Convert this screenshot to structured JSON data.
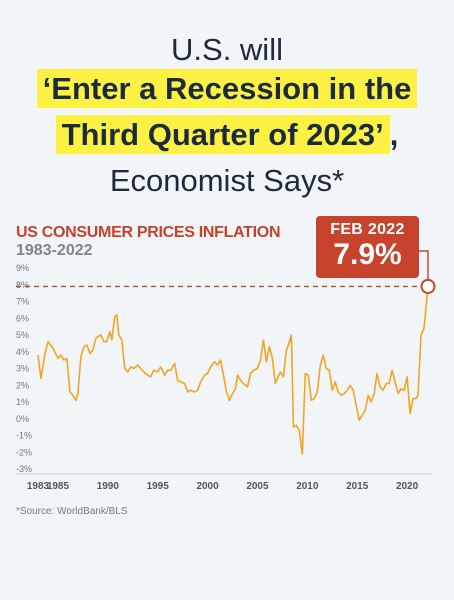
{
  "headline": {
    "line1": "U.S. will",
    "line2": "‘Enter a Recession in the",
    "line3": "Third Quarter of 2023’",
    "line3_suffix": ",",
    "line4": "Economist Says*"
  },
  "callout": {
    "date": "FEB 2022",
    "value": "7.9%"
  },
  "source": "*Source: WorldBank/BLS",
  "colors": {
    "line": "#f5a420",
    "accent": "#c7432b",
    "highlight": "#fdf244",
    "headline": "#1c2a3d"
  },
  "chart_data": {
    "type": "line",
    "title": "US CONSUMER PRICES INFLATION",
    "subtitle": "1983-2022",
    "xlabel": "",
    "ylabel": "",
    "xlim": [
      1983,
      2022.5
    ],
    "ylim": [
      -3,
      9
    ],
    "yticks": [
      "9%",
      "8%",
      "7%",
      "6%",
      "5%",
      "4%",
      "3%",
      "2%",
      "1%",
      "0%",
      "-1%",
      "-2%",
      "-3%"
    ],
    "xticks": [
      "1983",
      "1985",
      "1990",
      "1995",
      "2000",
      "2005",
      "2010",
      "2015",
      "2020"
    ],
    "reference_line": {
      "y": 7.9,
      "style": "dashed"
    },
    "highlight_point": {
      "x": 2022.1,
      "y": 7.9
    },
    "grid": false,
    "series": [
      {
        "x": [
          1983.0,
          1983.3,
          1983.7,
          1984.0,
          1984.5,
          1985.0,
          1985.3,
          1985.6,
          1985.9,
          1986.2,
          1986.5,
          1986.8,
          1987.0,
          1987.3,
          1987.6,
          1987.9,
          1988.2,
          1988.5,
          1988.8,
          1989.0,
          1989.3,
          1989.6,
          1989.9,
          1990.2,
          1990.4,
          1990.7,
          1990.9,
          1991.1,
          1991.4,
          1991.7,
          1992.0,
          1992.3,
          1992.6,
          1993.0,
          1993.3,
          1993.6,
          1994.0,
          1994.3,
          1994.6,
          1995.0,
          1995.3,
          1995.7,
          1996.0,
          1996.3,
          1996.7,
          1997.0,
          1997.3,
          1997.7,
          1998.0,
          1998.3,
          1998.7,
          1999.0,
          1999.3,
          1999.7,
          2000.0,
          2000.3,
          2000.7,
          2001.0,
          2001.3,
          2001.6,
          2001.9,
          2002.2,
          2002.5,
          2002.8,
          2003.0,
          2003.3,
          2003.6,
          2004.0,
          2004.3,
          2004.6,
          2005.0,
          2005.3,
          2005.6,
          2005.9,
          2006.2,
          2006.5,
          2006.8,
          2007.0,
          2007.3,
          2007.6,
          2007.9,
          2008.1,
          2008.4,
          2008.6,
          2008.9,
          2009.2,
          2009.5,
          2009.8,
          2010.1,
          2010.4,
          2010.7,
          2011.0,
          2011.3,
          2011.6,
          2011.9,
          2012.2,
          2012.5,
          2012.8,
          2013.1,
          2013.4,
          2013.7,
          2014.0,
          2014.3,
          2014.6,
          2014.9,
          2015.2,
          2015.5,
          2015.8,
          2016.1,
          2016.4,
          2016.7,
          2017.0,
          2017.3,
          2017.6,
          2017.9,
          2018.2,
          2018.5,
          2018.8,
          2019.1,
          2019.4,
          2019.7,
          2020.0,
          2020.3,
          2020.6,
          2020.9,
          2021.1,
          2021.4,
          2021.7,
          2022.1
        ],
        "values": [
          3.8,
          2.4,
          3.9,
          4.6,
          4.2,
          3.6,
          3.8,
          3.5,
          3.6,
          1.6,
          1.4,
          1.1,
          1.5,
          3.7,
          4.3,
          4.4,
          3.9,
          4.1,
          4.8,
          4.9,
          5.0,
          4.6,
          4.6,
          5.2,
          4.7,
          6.1,
          6.2,
          5.0,
          4.7,
          3.0,
          2.8,
          3.1,
          3.0,
          3.2,
          3.0,
          2.8,
          2.6,
          2.5,
          2.9,
          2.8,
          3.1,
          2.6,
          2.9,
          2.9,
          3.3,
          2.3,
          2.2,
          2.1,
          1.6,
          1.7,
          1.6,
          1.7,
          2.2,
          2.6,
          2.7,
          3.1,
          3.4,
          3.2,
          3.5,
          2.6,
          1.6,
          1.1,
          1.5,
          1.8,
          2.6,
          2.3,
          2.1,
          1.9,
          2.7,
          2.9,
          3.0,
          3.5,
          4.7,
          3.4,
          4.3,
          3.6,
          2.1,
          2.4,
          2.8,
          2.5,
          4.1,
          4.4,
          5.0,
          -0.5,
          -0.4,
          -0.7,
          -2.1,
          2.7,
          2.6,
          1.1,
          1.2,
          1.6,
          3.2,
          3.8,
          3.0,
          2.9,
          1.7,
          2.2,
          1.6,
          1.4,
          1.5,
          1.7,
          2.0,
          1.7,
          0.8,
          -0.1,
          0.2,
          0.5,
          1.4,
          1.0,
          1.5,
          2.7,
          1.9,
          1.7,
          2.1,
          2.1,
          2.9,
          2.2,
          1.5,
          1.8,
          1.7,
          2.5,
          0.3,
          1.2,
          1.2,
          1.4,
          5.0,
          5.4,
          7.9
        ]
      }
    ]
  }
}
